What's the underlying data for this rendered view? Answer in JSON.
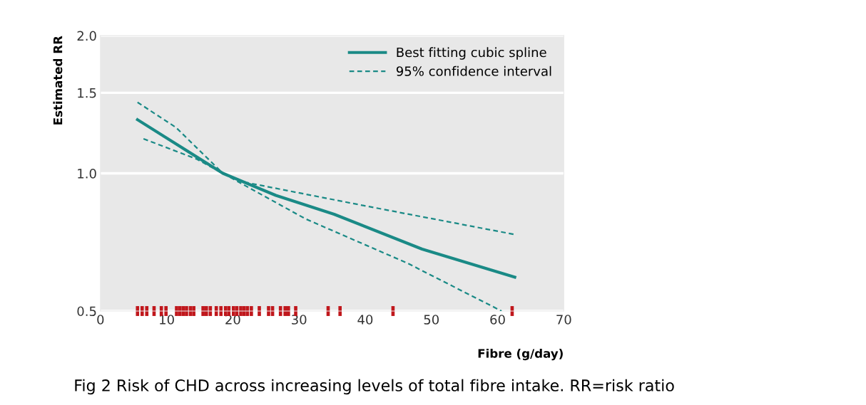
{
  "chart_data": {
    "type": "line",
    "xlabel": "Fibre (g/day)",
    "ylabel": "Estimated RR",
    "xlim": [
      0,
      70
    ],
    "xticks": [
      0,
      10,
      20,
      30,
      40,
      50,
      60,
      70
    ],
    "ylim": [
      0.5,
      2.0
    ],
    "yticks": [
      0.5,
      {
        "value": 1,
        "label": "1.0"
      },
      1.5,
      {
        "value": 2,
        "label": "2.0"
      }
    ],
    "log": true,
    "grid": "y",
    "legend": "top right",
    "tick_labels": true,
    "series": [
      {
        "name": "Best fitting cubic spline",
        "color": "#1a8a86",
        "line_style": "solid",
        "x": [
          5.6,
          11,
          18.5,
          26.5,
          35.3,
          48.6,
          62.6
        ],
        "values": [
          1.31,
          1.17,
          1.0,
          0.895,
          0.814,
          0.683,
          0.593
        ]
      },
      {
        "name": "95% confidence interval",
        "color": "#1a8a86",
        "line_style": "dashed",
        "x": [
          5.6,
          11.4,
          18.5,
          22,
          39.8,
          62.6
        ],
        "values": [
          1.43,
          1.26,
          1.0,
          0.955,
          0.85,
          0.735
        ]
      },
      {
        "color": "#1a8a86",
        "line_style": "dashed",
        "x": [
          6.5,
          14.5,
          18.5,
          31,
          46.4,
          60.6
        ],
        "values": [
          1.19,
          1.075,
          1.0,
          0.795,
          0.636,
          0.5
        ]
      },
      {
        "type": "scatter",
        "color": "#c0171c",
        "x": [
          5.6,
          6.3,
          7.0,
          8.1,
          9.2,
          9.9,
          11.5,
          12.0,
          12.5,
          13.0,
          13.6,
          14.1,
          15.5,
          16.0,
          16.6,
          17.5,
          18.2,
          18.9,
          19.4,
          20.1,
          20.6,
          21.2,
          21.7,
          22.2,
          22.8,
          24.0,
          25.4,
          26.0,
          27.2,
          27.9,
          28.4,
          29.5,
          34.4,
          36.2,
          44.2,
          62.2
        ],
        "values": [
          0.5,
          0.5,
          0.5,
          0.5,
          0.5,
          0.5,
          0.5,
          0.5,
          0.5,
          0.5,
          0.5,
          0.5,
          0.5,
          0.5,
          0.5,
          0.5,
          0.5,
          0.5,
          0.5,
          0.5,
          0.5,
          0.5,
          0.5,
          0.5,
          0.5,
          0.5,
          0.5,
          0.5,
          0.5,
          0.5,
          0.5,
          0.5,
          0.5,
          0.5,
          0.5,
          0.5
        ]
      }
    ],
    "annotations": [
      "Fig 2 Risk of CHD across increasing levels of total fibre intake. RR=risk ratio"
    ]
  }
}
